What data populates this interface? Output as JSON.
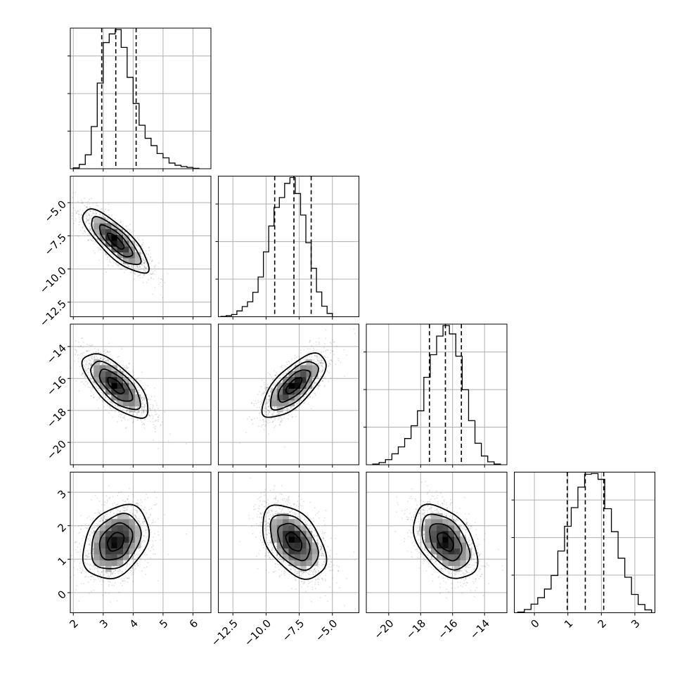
{
  "chart_data": {
    "type": "corner",
    "parameters": 4,
    "colors": {
      "ink": "#000000",
      "grid": "#b0b0b0",
      "scatter": "#bdbdbd"
    },
    "grid": true,
    "ranges": [
      [
        1.9,
        6.6
      ],
      [
        -13.6,
        -3.0
      ],
      [
        -21.4,
        -12.6
      ],
      [
        -0.6,
        3.6
      ]
    ],
    "ticks": [
      [
        2,
        3,
        4,
        5,
        6
      ],
      [
        -12.5,
        -10.0,
        -7.5,
        -5.0
      ],
      [
        -20,
        -18,
        -16,
        -14
      ],
      [
        0,
        1,
        2,
        3
      ]
    ],
    "tick_labels": [
      [
        "2",
        "3",
        "4",
        "5",
        "6"
      ],
      [
        "−12.5",
        "−10.0",
        "−7.5",
        "−5.0"
      ],
      [
        "−20",
        "−18",
        "−16",
        "−14"
      ],
      [
        "0",
        "1",
        "2",
        "3"
      ]
    ],
    "marginals": [
      {
        "edges": [
          2.0,
          2.2,
          2.4,
          2.6,
          2.8,
          3.0,
          3.2,
          3.4,
          3.6,
          3.8,
          4.0,
          4.2,
          4.4,
          4.6,
          4.8,
          5.0,
          5.2,
          5.4,
          5.6,
          5.8,
          6.0,
          6.2
        ],
        "counts": [
          2,
          10,
          32,
          97,
          197,
          290,
          310,
          320,
          279,
          210,
          150,
          100,
          70,
          53,
          35,
          25,
          13,
          8,
          5,
          3,
          1
        ],
        "quantiles": [
          2.95,
          3.42,
          4.1
        ]
      },
      {
        "edges": [
          -13.4,
          -13.0,
          -12.6,
          -12.2,
          -11.8,
          -11.4,
          -11.0,
          -10.6,
          -10.2,
          -9.8,
          -9.4,
          -9.0,
          -8.6,
          -8.2,
          -7.8,
          -7.4,
          -7.0,
          -6.6,
          -6.2,
          -5.8,
          -5.4,
          -5.0
        ],
        "counts": [
          1,
          3,
          6,
          16,
          28,
          41,
          67,
          109,
          178,
          249,
          300,
          327,
          366,
          382,
          338,
          279,
          203,
          133,
          68,
          29,
          9
        ],
        "quantiles": [
          -9.35,
          -7.9,
          -6.6
        ]
      },
      {
        "edges": [
          -21.0,
          -20.6,
          -20.2,
          -19.8,
          -19.4,
          -19.0,
          -18.6,
          -18.2,
          -17.8,
          -17.4,
          -17.0,
          -16.6,
          -16.2,
          -15.8,
          -15.4,
          -15.0,
          -14.6,
          -14.2,
          -13.8,
          -13.4,
          -13.0
        ],
        "counts": [
          2,
          6,
          14,
          30,
          49,
          72,
          107,
          148,
          240,
          302,
          353,
          382,
          359,
          298,
          206,
          121,
          59,
          24,
          8,
          2
        ],
        "quantiles": [
          -17.45,
          -16.45,
          -15.45
        ]
      },
      {
        "edges": [
          -0.5,
          -0.3,
          -0.1,
          0.1,
          0.3,
          0.5,
          0.7,
          0.9,
          1.1,
          1.3,
          1.5,
          1.7,
          1.9,
          2.1,
          2.3,
          2.5,
          2.7,
          2.9,
          3.1,
          3.3,
          3.5
        ],
        "counts": [
          2,
          9,
          24,
          42,
          66,
          104,
          172,
          241,
          293,
          350,
          386,
          388,
          372,
          290,
          226,
          152,
          99,
          51,
          23,
          8
        ],
        "quantiles": [
          0.98,
          1.52,
          2.07
        ]
      }
    ],
    "pairs": [
      {
        "row": 1,
        "col": 0,
        "mean": [
          3.42,
          -7.9
        ],
        "sd": [
          0.55,
          1.2
        ],
        "rho": -0.8
      },
      {
        "row": 2,
        "col": 0,
        "mean": [
          3.42,
          -16.45
        ],
        "sd": [
          0.55,
          1.0
        ],
        "rho": -0.7
      },
      {
        "row": 2,
        "col": 1,
        "mean": [
          -7.9,
          -16.45
        ],
        "sd": [
          1.2,
          1.0
        ],
        "rho": 0.7
      },
      {
        "row": 3,
        "col": 0,
        "mean": [
          3.42,
          1.52
        ],
        "sd": [
          0.55,
          0.55
        ],
        "rho": 0.3
      },
      {
        "row": 3,
        "col": 1,
        "mean": [
          -7.9,
          1.52
        ],
        "sd": [
          1.2,
          0.55
        ],
        "rho": -0.45
      },
      {
        "row": 3,
        "col": 2,
        "mean": [
          -16.45,
          1.52
        ],
        "sd": [
          1.0,
          0.55
        ],
        "rho": -0.45
      }
    ],
    "contour_levels_sigma": [
      0.5,
      1.0,
      1.5,
      2.0
    ],
    "scatter_points_per_panel": 1800
  }
}
